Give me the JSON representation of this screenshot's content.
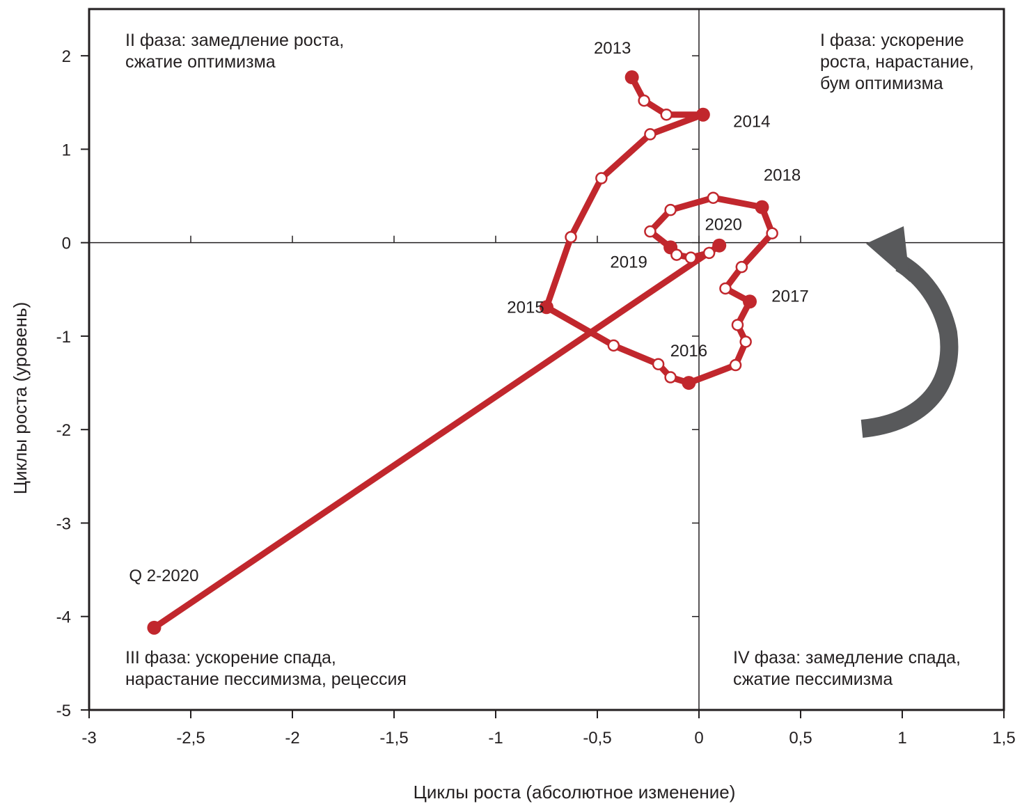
{
  "chart_data": {
    "type": "line",
    "xlabel": "Циклы роста (абсолютное изменение)",
    "ylabel": "Циклы роста (уровень)",
    "xlim": [
      -3,
      1.5
    ],
    "ylim": [
      -5,
      2.5
    ],
    "x_ticks": [
      -3,
      -2.5,
      -2,
      -1.5,
      -1,
      -0.5,
      0,
      0.5,
      1,
      1.5
    ],
    "x_tick_labels": [
      "-3",
      "-2,5",
      "-2",
      "-1,5",
      "-1",
      "-0,5",
      "0",
      "0,5",
      "1",
      "1,5"
    ],
    "y_ticks": [
      -5,
      -4,
      -3,
      -2,
      -1,
      0,
      1,
      2
    ],
    "y_tick_labels": [
      "-5",
      "-4",
      "-3",
      "-2",
      "-1",
      "0",
      "1",
      "2"
    ],
    "grid": false,
    "quadrant_labels": [
      {
        "id": "phase-2",
        "lines": [
          "II фаза: замедление роста,",
          "сжатие оптимизма"
        ],
        "anchor": "top-left"
      },
      {
        "id": "phase-1",
        "lines": [
          "I фаза: ускорение",
          "роста, нарастание,",
          "бум оптимизма"
        ],
        "anchor": "top-right"
      },
      {
        "id": "phase-3",
        "lines": [
          "III фаза: ускорение спада,",
          "нарастание пессимизма, рецессия"
        ],
        "anchor": "bottom-left"
      },
      {
        "id": "phase-4",
        "lines": [
          "IV фаза: замедление спада,",
          "сжатие пессимизма"
        ],
        "anchor": "bottom-right"
      }
    ],
    "series": [
      {
        "color": "#c1272d",
        "points": [
          {
            "x": -0.33,
            "y": 1.77,
            "year_start": true,
            "label": "2013"
          },
          {
            "x": -0.27,
            "y": 1.52
          },
          {
            "x": -0.16,
            "y": 1.37
          },
          {
            "x": 0.02,
            "y": 1.37,
            "year_start": true,
            "label": "2014"
          },
          {
            "x": -0.24,
            "y": 1.16
          },
          {
            "x": -0.48,
            "y": 0.69
          },
          {
            "x": -0.63,
            "y": 0.06
          },
          {
            "x": -0.75,
            "y": -0.69,
            "year_start": true,
            "label": "2015"
          },
          {
            "x": -0.42,
            "y": -1.1
          },
          {
            "x": -0.2,
            "y": -1.3
          },
          {
            "x": -0.14,
            "y": -1.44
          },
          {
            "x": -0.05,
            "y": -1.5,
            "year_start": true,
            "label": "2016"
          },
          {
            "x": 0.18,
            "y": -1.31
          },
          {
            "x": 0.23,
            "y": -1.06
          },
          {
            "x": 0.19,
            "y": -0.88
          },
          {
            "x": 0.25,
            "y": -0.63,
            "year_start": true,
            "label": "2017"
          },
          {
            "x": 0.13,
            "y": -0.49
          },
          {
            "x": 0.21,
            "y": -0.26
          },
          {
            "x": 0.36,
            "y": 0.1
          },
          {
            "x": 0.31,
            "y": 0.38,
            "year_start": true,
            "label": "2018"
          },
          {
            "x": 0.07,
            "y": 0.48
          },
          {
            "x": -0.14,
            "y": 0.35
          },
          {
            "x": -0.24,
            "y": 0.12
          },
          {
            "x": -0.14,
            "y": -0.05,
            "year_start": true,
            "label": "2019"
          },
          {
            "x": -0.11,
            "y": -0.13
          },
          {
            "x": -0.04,
            "y": -0.16
          },
          {
            "x": 0.05,
            "y": -0.11
          },
          {
            "x": 0.1,
            "y": -0.03,
            "year_start": true,
            "label": "2020"
          },
          {
            "x": -2.68,
            "y": -4.12,
            "year_start": true,
            "label": "Q 2-2020"
          }
        ]
      }
    ],
    "direction_arrow": {
      "meaning": "cycle direction",
      "rotation": "counter-clockwise",
      "color": "#58595b"
    }
  }
}
